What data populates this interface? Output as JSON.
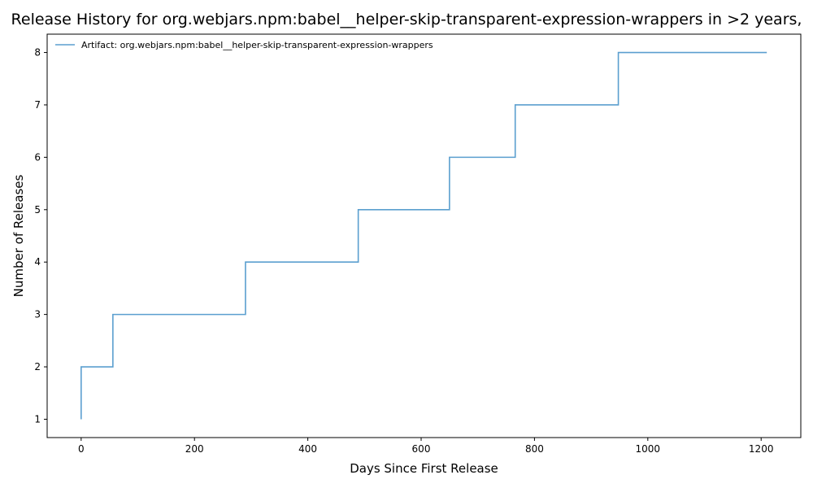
{
  "chart_data": {
    "type": "line",
    "title": "Release History for org.webjars.npm:babel__helper-skip-transparent-expression-wrappers in >2 years, ",
    "xlabel": "Days Since First Release",
    "ylabel": "Number of Releases",
    "xlim": [
      -60,
      1270
    ],
    "ylim": [
      0.65,
      8.35
    ],
    "xticks": [
      0,
      200,
      400,
      600,
      800,
      1000,
      1200
    ],
    "yticks": [
      1,
      2,
      3,
      4,
      5,
      6,
      7,
      8
    ],
    "grid": false,
    "legend_position": "top-left",
    "step": "post",
    "series": [
      {
        "name": "Artifact: org.webjars.npm:babel__helper-skip-transparent-expression-wrappers",
        "color": "#5b9fcf",
        "x": [
          0,
          0,
          56,
          290,
          489,
          650,
          766,
          948,
          1210
        ],
        "y": [
          1,
          2,
          3,
          4,
          5,
          6,
          7,
          8,
          8
        ]
      }
    ]
  }
}
